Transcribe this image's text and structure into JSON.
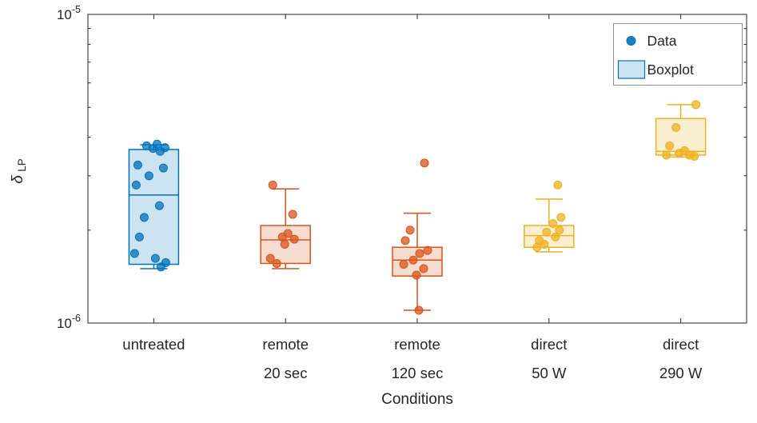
{
  "figure": {
    "background": "#ffffff",
    "axis_color": "#262626",
    "legend_border_color": "#8f8f8f"
  },
  "chart_data": {
    "type": "boxplot+scatter",
    "title": "",
    "xlabel": "Conditions",
    "ylabel": {
      "symbol": "δ",
      "subscript": "LP"
    },
    "yscale": "log",
    "ylim": [
      1e-06,
      1e-05
    ],
    "yticks": [
      {
        "value": 1e-06,
        "base": "10",
        "exp": "-6"
      },
      {
        "value": 1e-05,
        "base": "10",
        "exp": "-5"
      }
    ],
    "yminor": [
      2e-06,
      3e-06,
      4e-06,
      5e-06,
      6e-06,
      7e-06,
      8e-06,
      9e-06
    ],
    "points_format": "[value, x_jitter_px]",
    "groups": [
      {
        "id": "untreated",
        "label_lines": [
          "untreated"
        ],
        "color": "#0072BD",
        "box": {
          "whisker_low": 1.5e-06,
          "q1": 1.55e-06,
          "median": 2.6e-06,
          "q3": 3.65e-06,
          "whisker_high": 3.78e-06
        },
        "points": [
          [
            3.8e-06,
            4
          ],
          [
            3.75e-06,
            -9
          ],
          [
            3.7e-06,
            14
          ],
          [
            3.68e-06,
            -1
          ],
          [
            3.6e-06,
            8
          ],
          [
            3.25e-06,
            -20
          ],
          [
            3.18e-06,
            12
          ],
          [
            3e-06,
            -6
          ],
          [
            2.8e-06,
            -22
          ],
          [
            2.4e-06,
            7
          ],
          [
            2.2e-06,
            -12
          ],
          [
            1.9e-06,
            -18
          ],
          [
            1.68e-06,
            -24
          ],
          [
            1.62e-06,
            2
          ],
          [
            1.57e-06,
            15
          ],
          [
            1.52e-06,
            9
          ]
        ]
      },
      {
        "id": "remote-20sec",
        "label_lines": [
          "remote",
          "20 sec"
        ],
        "color": "#D95319",
        "box": {
          "whisker_low": 1.5e-06,
          "q1": 1.56e-06,
          "median": 1.86e-06,
          "q3": 2.07e-06,
          "whisker_high": 2.72e-06
        },
        "points": [
          [
            2.8e-06,
            -16
          ],
          [
            2.25e-06,
            9
          ],
          [
            1.95e-06,
            3
          ],
          [
            1.9e-06,
            -4
          ],
          [
            1.87e-06,
            11
          ],
          [
            1.8e-06,
            -1
          ],
          [
            1.62e-06,
            -19
          ],
          [
            1.56e-06,
            -11
          ]
        ]
      },
      {
        "id": "remote-120sec",
        "label_lines": [
          "remote",
          "120 sec"
        ],
        "color": "#D95319",
        "box": {
          "whisker_low": 1.1e-06,
          "q1": 1.42e-06,
          "median": 1.6e-06,
          "q3": 1.76e-06,
          "whisker_high": 2.27e-06
        },
        "points": [
          [
            3.3e-06,
            9
          ],
          [
            2e-06,
            -9
          ],
          [
            1.85e-06,
            -15
          ],
          [
            1.72e-06,
            13
          ],
          [
            1.68e-06,
            3
          ],
          [
            1.6e-06,
            -5
          ],
          [
            1.55e-06,
            -17
          ],
          [
            1.5e-06,
            8
          ],
          [
            1.43e-06,
            -1
          ],
          [
            1.1e-06,
            2
          ]
        ]
      },
      {
        "id": "direct-50W",
        "label_lines": [
          "direct",
          "50 W"
        ],
        "color": "#EDB120",
        "box": {
          "whisker_low": 1.7e-06,
          "q1": 1.76e-06,
          "median": 1.92e-06,
          "q3": 2.07e-06,
          "whisker_high": 2.52e-06
        },
        "points": [
          [
            2.8e-06,
            11
          ],
          [
            2.2e-06,
            15
          ],
          [
            2.1e-06,
            5
          ],
          [
            2e-06,
            13
          ],
          [
            1.97e-06,
            -3
          ],
          [
            1.9e-06,
            8
          ],
          [
            1.85e-06,
            -12
          ],
          [
            1.8e-06,
            -6
          ],
          [
            1.76e-06,
            -15
          ]
        ]
      },
      {
        "id": "direct-290W",
        "label_lines": [
          "direct",
          "290 W"
        ],
        "color": "#EDB120",
        "box": {
          "whisker_low": 3.45e-06,
          "q1": 3.5e-06,
          "median": 3.6e-06,
          "q3": 4.6e-06,
          "whisker_high": 5.1e-06
        },
        "points": [
          [
            5.1e-06,
            19
          ],
          [
            4.3e-06,
            -6
          ],
          [
            3.75e-06,
            -14
          ],
          [
            3.62e-06,
            5
          ],
          [
            3.55e-06,
            -2
          ],
          [
            3.5e-06,
            -18
          ],
          [
            3.5e-06,
            11
          ],
          [
            3.47e-06,
            17
          ]
        ]
      }
    ],
    "legend": {
      "position": "northeast",
      "color": "#0072BD",
      "items": [
        {
          "label": "Data",
          "swatch": "marker"
        },
        {
          "label": "Boxplot",
          "swatch": "box"
        }
      ]
    }
  }
}
